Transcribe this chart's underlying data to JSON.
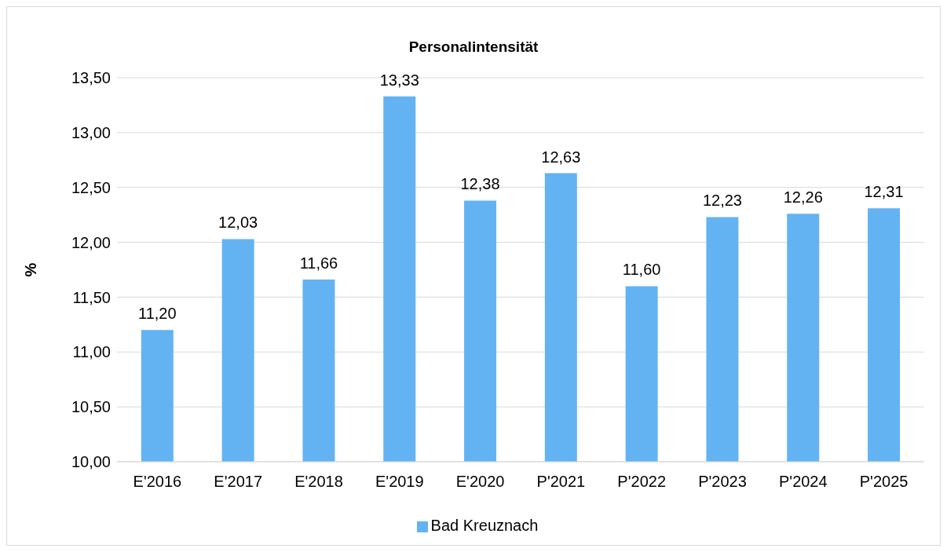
{
  "chart_data": {
    "type": "bar",
    "title": "Personalintensität",
    "ylabel": "%",
    "categories": [
      "E'2016",
      "E'2017",
      "E'2018",
      "E'2019",
      "E'2020",
      "P'2021",
      "P'2022",
      "P'2023",
      "P'2024",
      "P'2025"
    ],
    "series": [
      {
        "name": "Bad Kreuznach",
        "color": "#63b3f3",
        "values": [
          11.2,
          12.03,
          11.66,
          13.33,
          12.38,
          12.63,
          11.6,
          12.23,
          12.26,
          12.31
        ],
        "value_labels": [
          "11,20",
          "12,03",
          "11,66",
          "13,33",
          "12,38",
          "12,63",
          "11,60",
          "12,23",
          "12,26",
          "12,31"
        ]
      }
    ],
    "ylim": [
      10,
      13.5
    ],
    "yticks": [
      {
        "value": 10,
        "label": "10,00"
      },
      {
        "value": 10.5,
        "label": "10,50"
      },
      {
        "value": 11,
        "label": "11,00"
      },
      {
        "value": 11.5,
        "label": "11,50"
      },
      {
        "value": 12,
        "label": "12,00"
      },
      {
        "value": 12.5,
        "label": "12,50"
      },
      {
        "value": 13,
        "label": "13,00"
      },
      {
        "value": 13.5,
        "label": "13,50"
      }
    ],
    "grid": "y",
    "legend": "bottom"
  }
}
